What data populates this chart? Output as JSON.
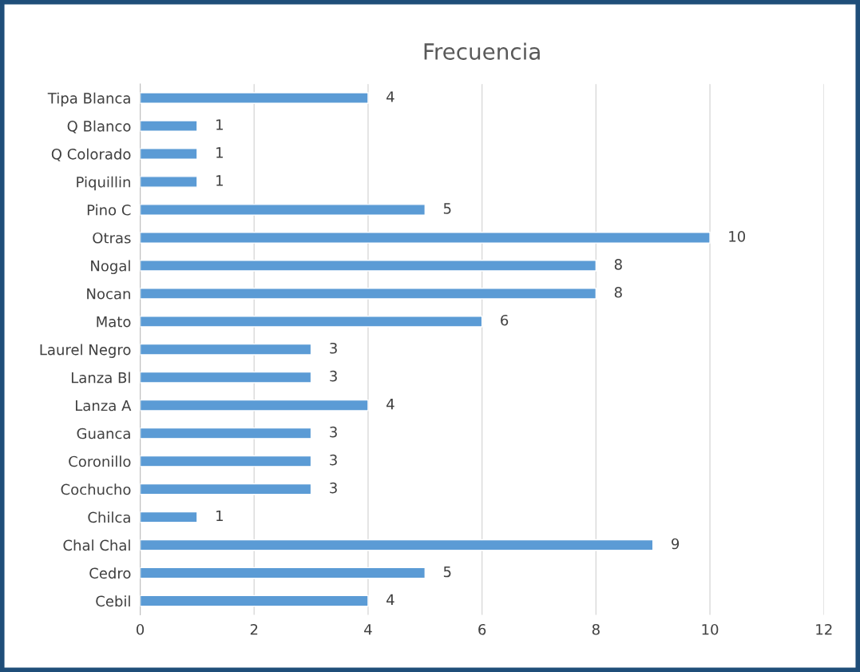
{
  "chart_data": {
    "type": "bar",
    "orientation": "horizontal",
    "title": "Frecuencia",
    "categories": [
      "Tipa Blanca",
      "Q Blanco",
      "Q Colorado",
      "Piquillin",
      "Pino C",
      "Otras",
      "Nogal",
      "Nocan",
      "Mato",
      "Laurel Negro",
      "Lanza Bl",
      "Lanza A",
      "Guanca",
      "Coronillo",
      "Cochucho",
      "Chilca",
      "Chal Chal",
      "Cedro",
      "Cebil"
    ],
    "values": [
      4,
      1,
      1,
      1,
      5,
      10,
      8,
      8,
      6,
      3,
      3,
      4,
      3,
      3,
      3,
      1,
      9,
      5,
      4
    ],
    "color": "#5b9bd5",
    "xlim": [
      0,
      12
    ],
    "xticks": [
      0,
      2,
      4,
      6,
      8,
      10,
      12
    ],
    "grid": "x",
    "data_labels": true
  }
}
